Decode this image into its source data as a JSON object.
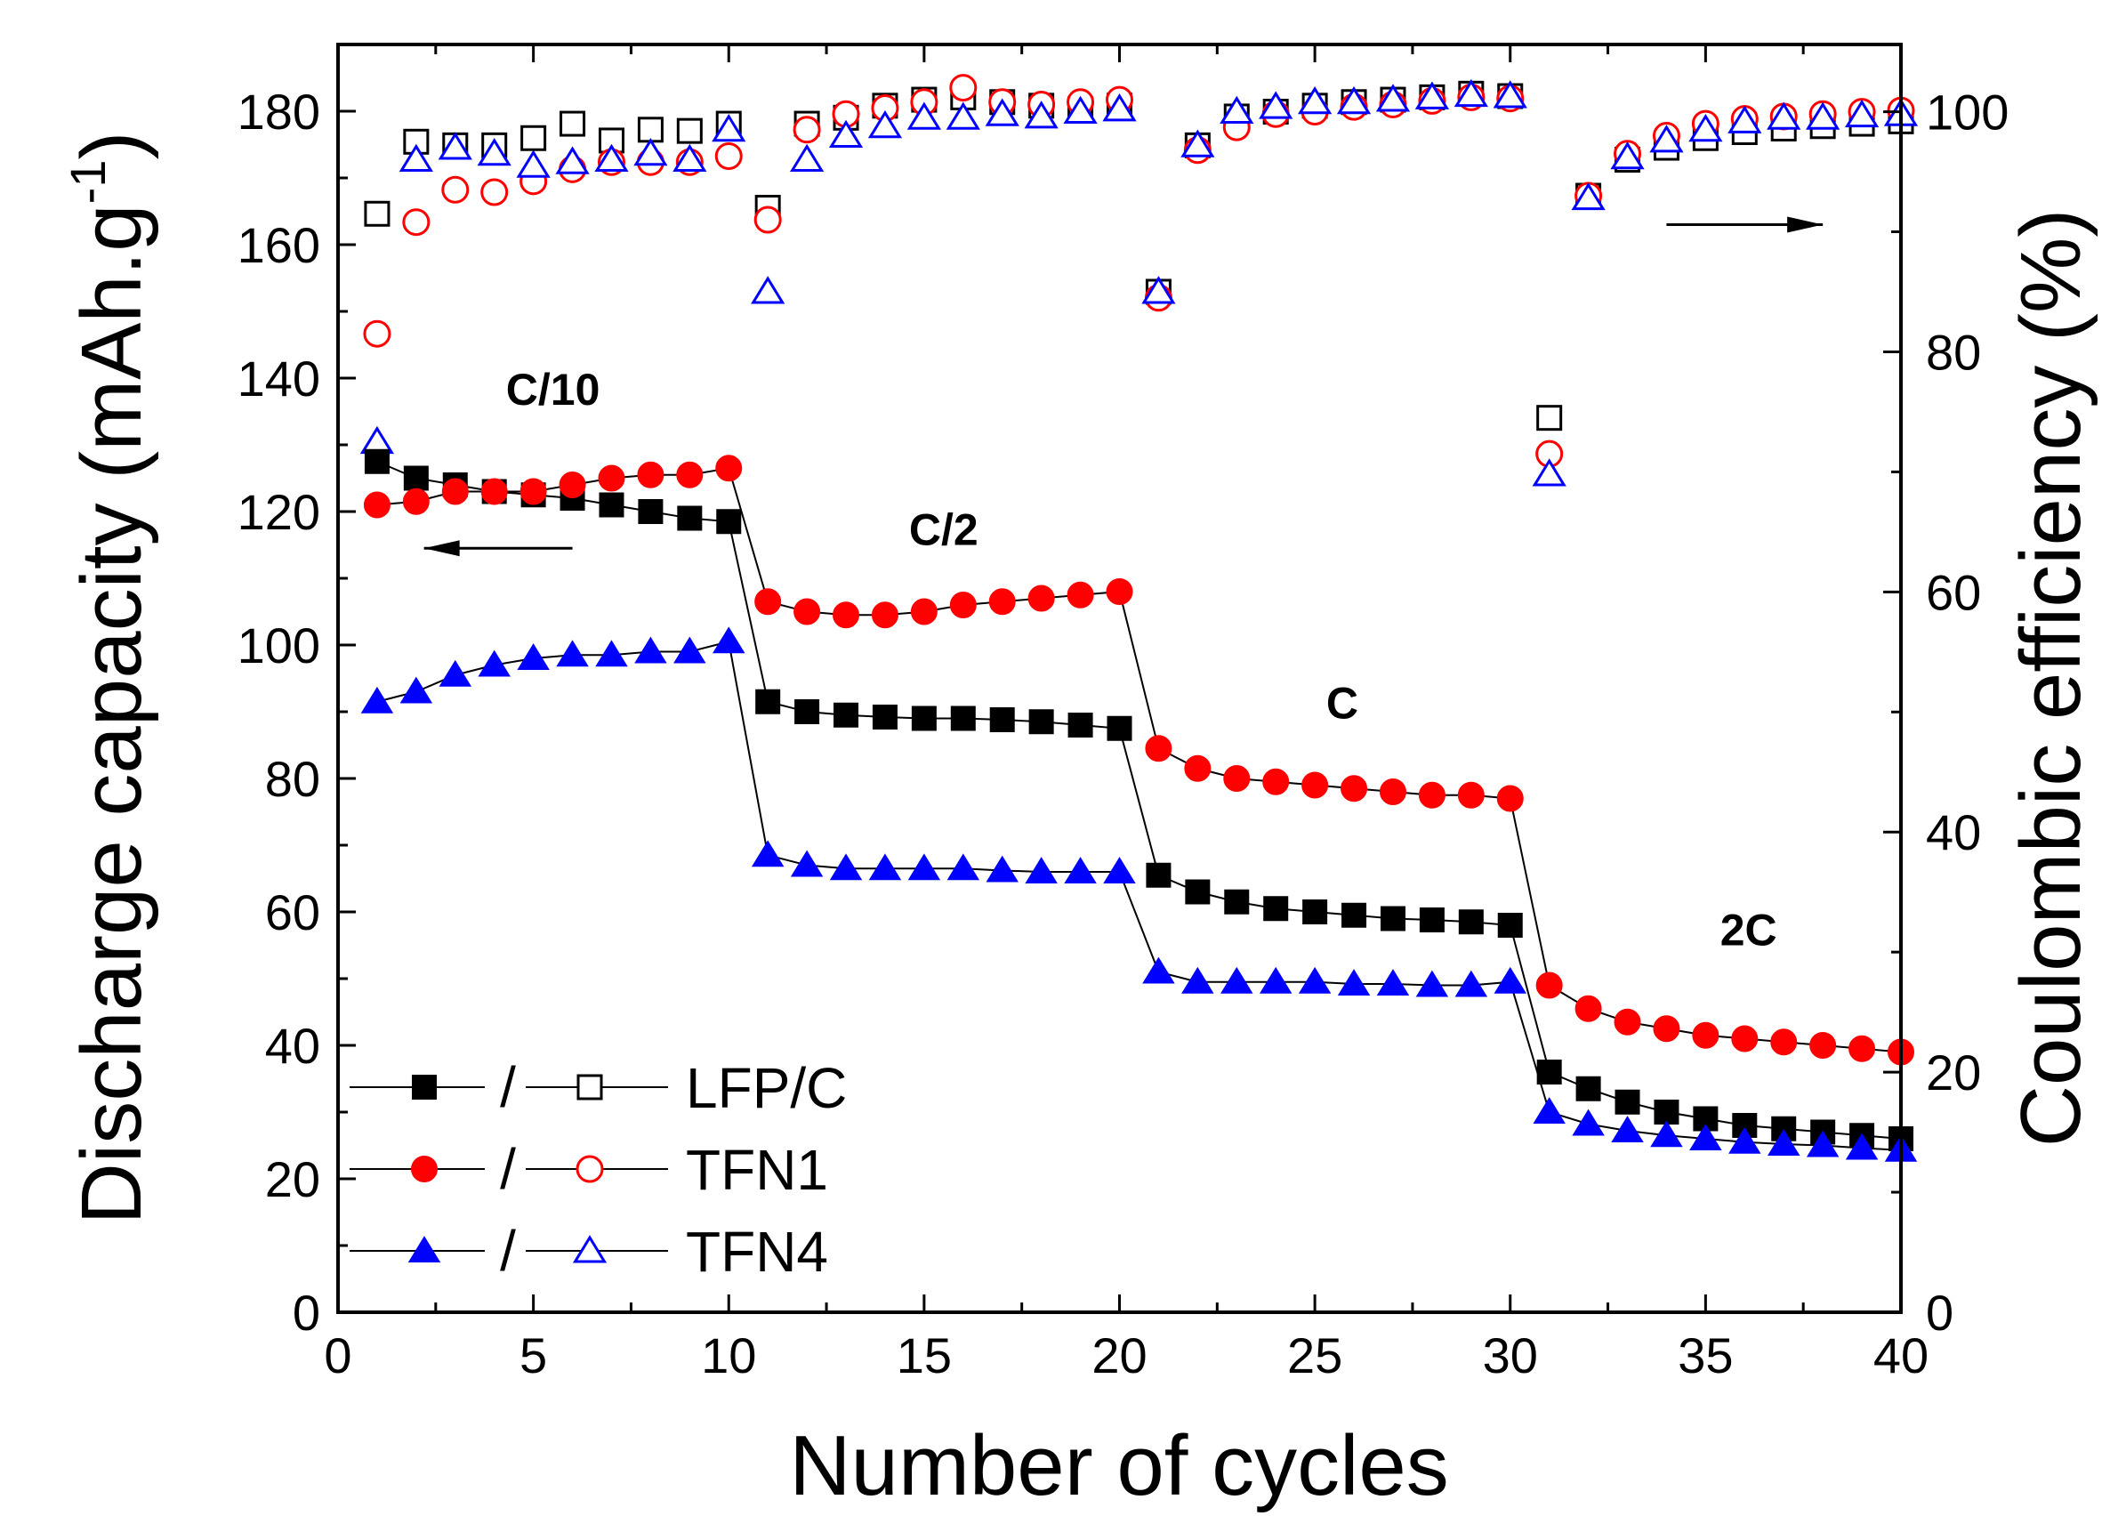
{
  "chart_data": {
    "type": "scatter",
    "xlabel": "Number of cycles",
    "ylabel": "Discharge capacity (mAh.g",
    "ylabel_sup": "-1",
    "ylabel_close": ")",
    "y2label": "Coulombic efficiency (%)",
    "xlim": [
      0,
      40
    ],
    "ylim": [
      0,
      190
    ],
    "y2lim": [
      0,
      105.6
    ],
    "xticks": [
      0,
      5,
      10,
      15,
      20,
      25,
      30,
      35,
      40
    ],
    "xtick_labels": [
      "0",
      "5",
      "10",
      "15",
      "20",
      "25",
      "30",
      "35",
      "40"
    ],
    "yticks": [
      0,
      20,
      40,
      60,
      80,
      100,
      120,
      140,
      160,
      180
    ],
    "ytick_labels": [
      "0",
      "20",
      "40",
      "60",
      "80",
      "100",
      "120",
      "140",
      "160",
      "180"
    ],
    "y2ticks": [
      0,
      20,
      40,
      60,
      80,
      100
    ],
    "y2tick_labels": [
      "0",
      "20",
      "40",
      "60",
      "80",
      "100"
    ],
    "x": [
      1,
      2,
      3,
      4,
      5,
      6,
      7,
      8,
      9,
      10,
      11,
      12,
      13,
      14,
      15,
      16,
      17,
      18,
      19,
      20,
      21,
      22,
      23,
      24,
      25,
      26,
      27,
      28,
      29,
      30,
      31,
      32,
      33,
      34,
      35,
      36,
      37,
      38,
      39,
      40
    ],
    "rate_labels": [
      {
        "text": "C/10",
        "x": 5.5,
        "y": 136
      },
      {
        "text": "C/2",
        "x": 15.5,
        "y": 115
      },
      {
        "text": "C",
        "x": 25.7,
        "y": 89
      },
      {
        "text": "2C",
        "x": 36.1,
        "y": 55
      }
    ],
    "arrows": [
      {
        "name": "capacity-axis-arrow",
        "from": [
          6,
          114.5
        ],
        "to": [
          2.2,
          114.5
        ],
        "axis": "left"
      },
      {
        "name": "efficiency-axis-arrow",
        "from": [
          34,
          163
        ],
        "to": [
          38,
          163
        ],
        "axis": "left"
      }
    ],
    "legend": {
      "position": "bottom-left",
      "separator": "/",
      "entries": [
        "LFP/C",
        "TFN1",
        "TFN4"
      ]
    },
    "series": [
      {
        "name": "LFP/C",
        "color": "#000000",
        "marker": "square",
        "capacity": [
          127.5,
          125,
          124,
          123,
          122.5,
          122,
          121,
          120,
          119,
          118.5,
          91.5,
          90,
          89.5,
          89.2,
          89,
          89,
          88.8,
          88.5,
          88,
          87.5,
          65.5,
          63,
          61.5,
          60.5,
          60,
          59.5,
          59,
          58.8,
          58.5,
          58,
          36,
          33.5,
          31.5,
          30,
          29,
          28,
          27.5,
          27,
          26.5,
          26
        ],
        "efficiency": [
          91.5,
          97.5,
          97.2,
          97.2,
          97.8,
          99,
          97.6,
          98.5,
          98.4,
          99,
          92,
          99,
          99.5,
          100.5,
          101,
          101.2,
          100.8,
          100.5,
          100.2,
          100.5,
          85,
          97.2,
          99.6,
          100,
          100.5,
          100.8,
          101,
          101.2,
          101.5,
          101.3,
          74.5,
          93,
          96,
          97,
          97.8,
          98.3,
          98.6,
          98.8,
          99,
          99.2
        ]
      },
      {
        "name": "TFN1",
        "color": "#ff0000",
        "marker": "circle",
        "capacity": [
          121,
          121.5,
          123,
          123,
          123,
          124,
          125,
          125.5,
          125.5,
          126.5,
          106.5,
          105,
          104.5,
          104.5,
          105,
          106,
          106.5,
          107,
          107.5,
          108,
          84.5,
          81.5,
          80,
          79.5,
          79,
          78.5,
          78,
          77.5,
          77.5,
          77,
          49,
          45.5,
          43.5,
          42.5,
          41.5,
          41,
          40.5,
          40,
          39.5,
          39
        ],
        "efficiency": [
          81.5,
          90.8,
          93.5,
          93.3,
          94.2,
          95.2,
          95.8,
          95.8,
          95.8,
          96.3,
          91,
          98.5,
          99.8,
          100.3,
          100.8,
          102,
          100.8,
          100.6,
          100.8,
          101,
          84.5,
          96.8,
          98.7,
          99.8,
          100,
          100.4,
          100.6,
          100.9,
          101.2,
          101.1,
          71.5,
          93,
          96.5,
          98,
          99,
          99.4,
          99.6,
          99.8,
          100,
          100.1
        ]
      },
      {
        "name": "TFN4",
        "color": "#0000ff",
        "marker": "triangle",
        "capacity": [
          91.5,
          93,
          95.5,
          97,
          98,
          98.5,
          98.5,
          99,
          99,
          100.5,
          68.5,
          67,
          66.5,
          66.5,
          66.5,
          66.5,
          66.2,
          66,
          66,
          66,
          51,
          49.5,
          49.5,
          49.5,
          49.5,
          49.2,
          49.2,
          49,
          49,
          49.5,
          30,
          28.2,
          27.2,
          26.5,
          26,
          25.5,
          25.2,
          25,
          24.6,
          24.3
        ],
        "efficiency": [
          72.5,
          96,
          97,
          96.5,
          95.5,
          95.8,
          96,
          96.5,
          96,
          98.5,
          85,
          96,
          98,
          98.8,
          99.5,
          99.5,
          99.8,
          99.6,
          100,
          100.2,
          85,
          97.2,
          100,
          100.4,
          100.8,
          100.8,
          101,
          101.2,
          101.4,
          101.3,
          69.8,
          92.8,
          96.2,
          97.6,
          98.5,
          99.2,
          99.5,
          99.5,
          99.7,
          99.8
        ]
      }
    ]
  }
}
